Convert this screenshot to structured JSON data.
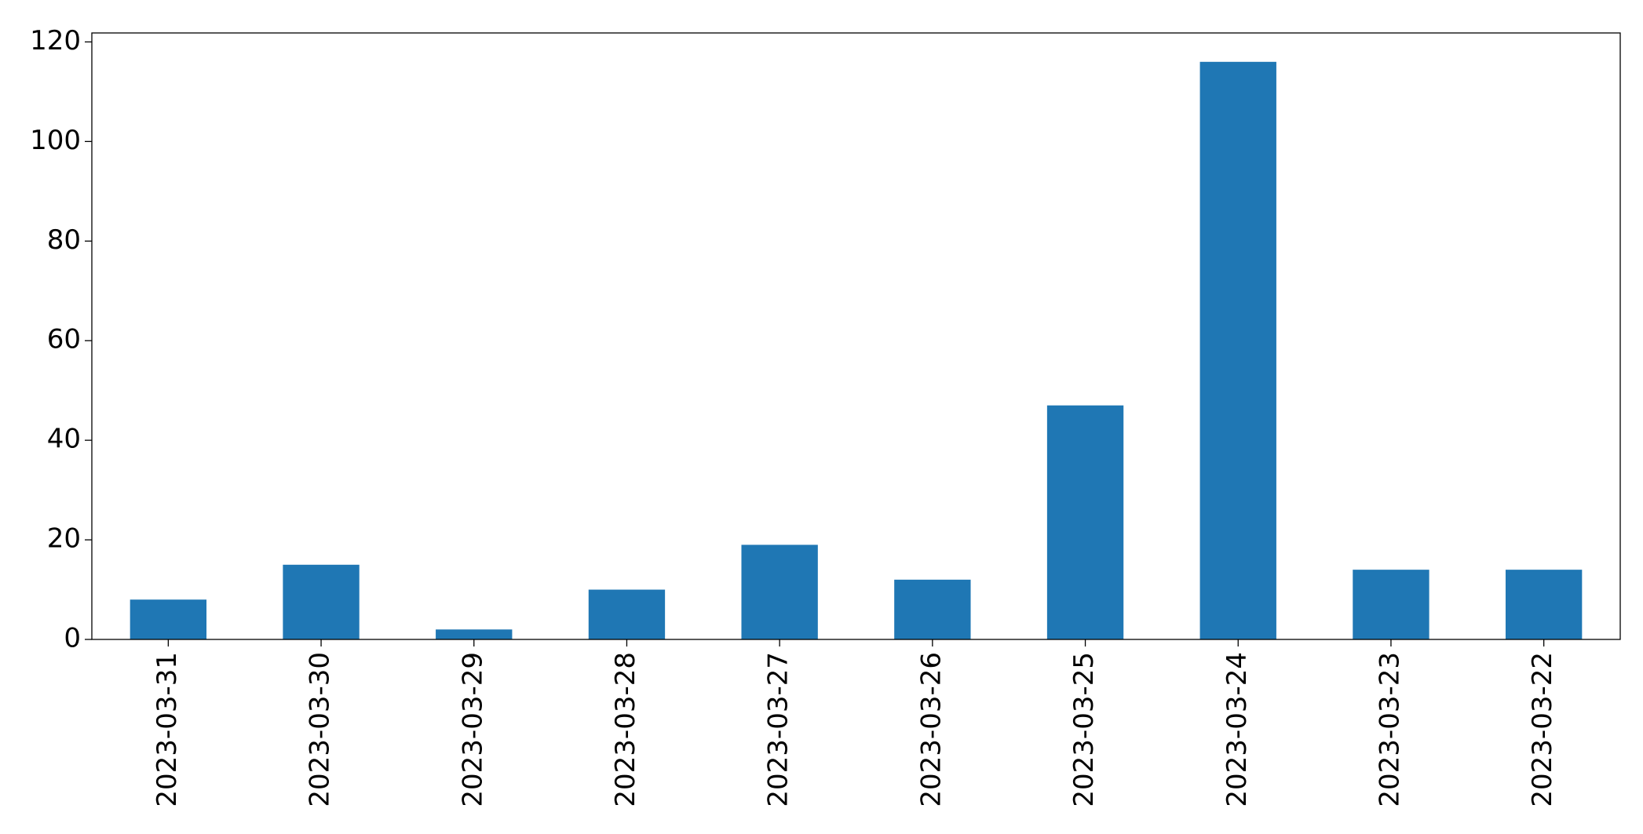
{
  "chart_data": {
    "type": "bar",
    "categories": [
      "2023-03-31",
      "2023-03-30",
      "2023-03-29",
      "2023-03-28",
      "2023-03-27",
      "2023-03-26",
      "2023-03-25",
      "2023-03-24",
      "2023-03-23",
      "2023-03-22"
    ],
    "values": [
      8,
      15,
      2,
      10,
      19,
      12,
      47,
      116,
      14,
      14
    ],
    "color": "#1f77b4",
    "ylim": [
      0,
      121.8
    ],
    "yticks": [
      0,
      20,
      40,
      60,
      80,
      100,
      120
    ],
    "grid": false
  }
}
